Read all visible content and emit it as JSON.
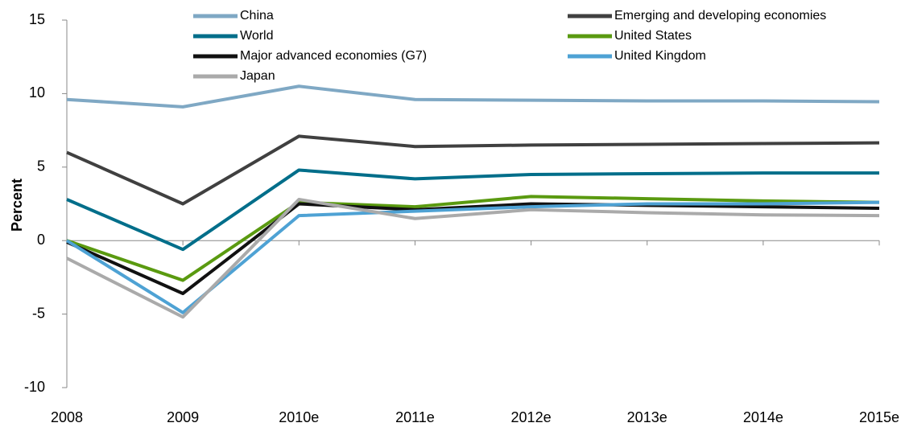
{
  "chart_data": {
    "type": "line",
    "y_label": "Percent",
    "categories": [
      "2008",
      "2009",
      "2010e",
      "2011e",
      "2012e",
      "2013e",
      "2014e",
      "2015e"
    ],
    "series": [
      {
        "name": "China",
        "color": "#7fa8c4",
        "values": [
          9.6,
          9.1,
          10.5,
          9.6,
          9.55,
          9.5,
          9.5,
          9.45
        ]
      },
      {
        "name": "Emerging and developing economies",
        "color": "#404040",
        "values": [
          6.0,
          2.5,
          7.1,
          6.4,
          6.5,
          6.55,
          6.6,
          6.65
        ]
      },
      {
        "name": "World",
        "color": "#006e8a",
        "values": [
          2.8,
          -0.6,
          4.8,
          4.2,
          4.5,
          4.55,
          4.6,
          4.6
        ]
      },
      {
        "name": "United States",
        "color": "#5a9a10",
        "values": [
          0.0,
          -2.7,
          2.6,
          2.3,
          3.0,
          2.85,
          2.7,
          2.6
        ]
      },
      {
        "name": "Major advanced economies (G7)",
        "color": "#111111",
        "values": [
          -0.1,
          -3.6,
          2.5,
          2.1,
          2.5,
          2.4,
          2.3,
          2.2
        ]
      },
      {
        "name": "United Kingdom",
        "color": "#4ea2d4",
        "values": [
          0.0,
          -4.9,
          1.7,
          2.0,
          2.3,
          2.5,
          2.5,
          2.6
        ]
      },
      {
        "name": "Japan",
        "color": "#aaaaaa",
        "values": [
          -1.2,
          -5.2,
          2.8,
          1.5,
          2.1,
          1.9,
          1.75,
          1.7
        ]
      }
    ],
    "ylim": [
      -10,
      15
    ],
    "yticks": [
      -10,
      -5,
      0,
      5,
      10,
      15
    ],
    "legend": "top"
  }
}
